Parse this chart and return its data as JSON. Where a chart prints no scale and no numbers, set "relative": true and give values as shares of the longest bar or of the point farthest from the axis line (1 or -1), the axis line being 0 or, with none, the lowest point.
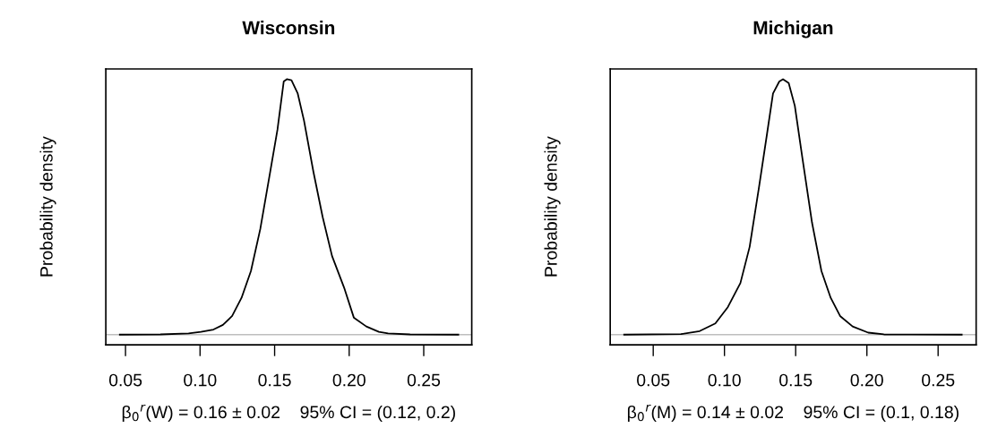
{
  "chart_data": [
    {
      "type": "line",
      "title": "Wisconsin",
      "ylabel": "Probability density",
      "xlabel": "β$_{0}$$^{r}$(W) = 0.16 ± 0.02    95% CI = (0.12, 0.2)",
      "relative": true,
      "grid": false,
      "xlim": [
        0.0368,
        0.2822
      ],
      "xticks": [
        {
          "value": 0.05,
          "label": "0.05"
        },
        {
          "value": 0.1,
          "label": "0.10"
        },
        {
          "value": 0.15,
          "label": "0.15"
        },
        {
          "value": 0.2,
          "label": "0.20"
        },
        {
          "value": 0.25,
          "label": "0.25"
        }
      ],
      "tick_labels": "x",
      "ref_lines": [
        {
          "axis": "y",
          "value": 0,
          "color": "#bebebe"
        }
      ],
      "series": [
        {
          "color": "#000000",
          "x": [
            0.0462,
            0.0734,
            0.0923,
            0.1006,
            0.109,
            0.1153,
            0.1215,
            0.1278,
            0.1341,
            0.1404,
            0.1467,
            0.1519,
            0.1561,
            0.1582,
            0.1613,
            0.1655,
            0.1697,
            0.176,
            0.1822,
            0.1885,
            0.1969,
            0.2031,
            0.2115,
            0.2199,
            0.2261,
            0.2408,
            0.2732
          ],
          "values": [
            0,
            0.001,
            0.005,
            0.011,
            0.02,
            0.038,
            0.073,
            0.144,
            0.249,
            0.414,
            0.626,
            0.802,
            0.991,
            1.0,
            0.996,
            0.944,
            0.838,
            0.638,
            0.461,
            0.308,
            0.179,
            0.067,
            0.032,
            0.011,
            0.005,
            0.001,
            0
          ]
        }
      ]
    },
    {
      "type": "line",
      "title": "Michigan",
      "ylabel": "Probability density",
      "xlabel": "β$_{0}$$^{r}$(M) = 0.14 ± 0.02    95% CI = (0.1, 0.18)",
      "relative": true,
      "grid": false,
      "xlim": [
        0.0198,
        0.2767
      ],
      "xticks": [
        {
          "value": 0.05,
          "label": "0.05"
        },
        {
          "value": 0.1,
          "label": "0.10"
        },
        {
          "value": 0.15,
          "label": "0.15"
        },
        {
          "value": 0.2,
          "label": "0.20"
        },
        {
          "value": 0.25,
          "label": "0.25"
        }
      ],
      "tick_labels": "x",
      "ref_lines": [
        {
          "axis": "y",
          "value": 0,
          "color": "#bebebe"
        }
      ],
      "series": [
        {
          "color": "#000000",
          "x": [
            0.0296,
            0.0695,
            0.0826,
            0.0936,
            0.1024,
            0.1112,
            0.1177,
            0.1243,
            0.1297,
            0.1341,
            0.1385,
            0.1411,
            0.1451,
            0.1494,
            0.1549,
            0.1615,
            0.1681,
            0.1746,
            0.1812,
            0.19,
            0.2009,
            0.2119,
            0.2666
          ],
          "values": [
            0,
            0.002,
            0.014,
            0.044,
            0.108,
            0.202,
            0.344,
            0.579,
            0.779,
            0.944,
            0.991,
            1.0,
            0.985,
            0.896,
            0.685,
            0.438,
            0.249,
            0.144,
            0.073,
            0.032,
            0.008,
            0.001,
            0
          ]
        }
      ]
    }
  ]
}
